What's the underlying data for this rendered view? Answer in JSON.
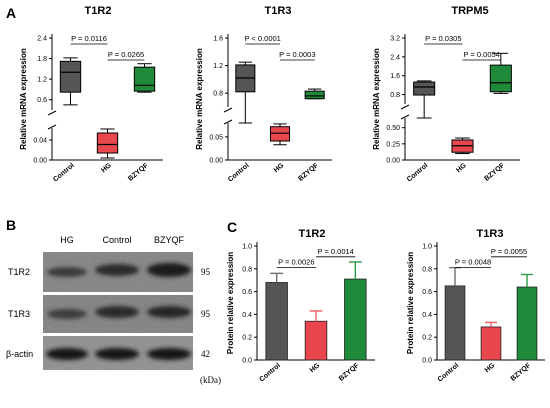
{
  "panels": {
    "A": "A",
    "B": "B",
    "C": "C"
  },
  "colors": {
    "control": "#555555",
    "hg": "#e8474d",
    "bzyqf": "#1f8a3a",
    "blot_bg": "#7d7d7d"
  },
  "chart_data": [
    {
      "id": "t1r2_mrna",
      "type": "box",
      "title": "T1R2",
      "ylabel": "Relative mRNA expression",
      "categories": [
        "Control",
        "HG",
        "BZYQF"
      ],
      "axis_break": true,
      "upper_ticks": [
        "2.4",
        "1.8",
        "1.2",
        "0.6"
      ],
      "lower_ticks": [
        "0.04",
        "0.00"
      ],
      "boxes": [
        {
          "group": "Control",
          "min": 0.45,
          "q1": 0.82,
          "median": 1.4,
          "q3": 1.72,
          "max": 1.82
        },
        {
          "group": "HG",
          "min": 0.004,
          "q1": 0.014,
          "median": 0.031,
          "q3": 0.054,
          "max": 0.062
        },
        {
          "group": "BZYQF",
          "min": 0.82,
          "q1": 0.85,
          "median": 1.02,
          "q3": 1.55,
          "max": 1.65
        }
      ],
      "comparisons": [
        {
          "from": "Control",
          "to": "HG",
          "label": "P = 0.0116"
        },
        {
          "from": "HG",
          "to": "BZYQF",
          "label": "P = 0.0265"
        }
      ]
    },
    {
      "id": "t1r3_mrna",
      "type": "box",
      "title": "T1R3",
      "ylabel": "Relative mRNA expression",
      "categories": [
        "Control",
        "HG",
        "BZYQF"
      ],
      "axis_break": true,
      "upper_ticks": [
        "1.6",
        "1.2",
        "0.8"
      ],
      "lower_ticks": [
        "0.05",
        "0.00"
      ],
      "boxes": [
        {
          "group": "Control",
          "min": 0.6,
          "q1": 0.82,
          "median": 1.02,
          "q3": 1.21,
          "max": 1.25
        },
        {
          "group": "HG",
          "min": 0.033,
          "q1": 0.041,
          "median": 0.058,
          "q3": 0.072,
          "max": 0.078
        },
        {
          "group": "BZYQF",
          "min": 0.72,
          "q1": 0.72,
          "median": 0.76,
          "q3": 0.83,
          "max": 0.86
        }
      ],
      "comparisons": [
        {
          "from": "Control",
          "to": "HG",
          "label": "P < 0.0001"
        },
        {
          "from": "HG",
          "to": "BZYQF",
          "label": "P = 0.0003"
        }
      ]
    },
    {
      "id": "trpm5_mrna",
      "type": "box",
      "title": "TRPM5",
      "ylabel": "Relative mRNA expression",
      "categories": [
        "Control",
        "HG",
        "BZYQF"
      ],
      "axis_break": true,
      "upper_ticks": [
        "3.2",
        "2.4",
        "1.6",
        "0.8"
      ],
      "lower_ticks": [
        "0.50",
        "0.25",
        "0.00"
      ],
      "boxes": [
        {
          "group": "Control",
          "min": 0.7,
          "q1": 0.78,
          "median": 1.12,
          "q3": 1.33,
          "max": 1.38
        },
        {
          "group": "HG",
          "min": 0.1,
          "q1": 0.12,
          "median": 0.22,
          "q3": 0.31,
          "max": 0.34
        },
        {
          "group": "BZYQF",
          "min": 0.85,
          "q1": 0.92,
          "median": 1.3,
          "q3": 2.05,
          "max": 2.55
        }
      ],
      "comparisons": [
        {
          "from": "Control",
          "to": "HG",
          "label": "P = 0.0305"
        },
        {
          "from": "HG",
          "to": "BZYQF",
          "label": "P = 0.0054"
        }
      ]
    },
    {
      "id": "t1r2_protein",
      "type": "bar",
      "title": "T1R2",
      "ylabel": "Protein relative expression",
      "categories": [
        "Control",
        "HG",
        "BZYQF"
      ],
      "ylim": [
        0,
        1.0
      ],
      "yticks": [
        "0.0",
        "0.2",
        "0.4",
        "0.6",
        "0.8",
        "1.0"
      ],
      "values": [
        0.68,
        0.34,
        0.71
      ],
      "errors": [
        0.08,
        0.09,
        0.15
      ],
      "comparisons": [
        {
          "from": "Control",
          "to": "HG",
          "label": "P = 0.0026"
        },
        {
          "from": "HG",
          "to": "BZYQF",
          "label": "P = 0.0014"
        }
      ]
    },
    {
      "id": "t1r3_protein",
      "type": "bar",
      "title": "T1R3",
      "ylabel": "Protein relative expression",
      "categories": [
        "Control",
        "HG",
        "BZYQF"
      ],
      "ylim": [
        0,
        1.0
      ],
      "yticks": [
        "0.0",
        "0.2",
        "0.4",
        "0.6",
        "0.8",
        "1.0"
      ],
      "values": [
        0.65,
        0.29,
        0.64
      ],
      "errors": [
        0.16,
        0.04,
        0.11
      ],
      "comparisons": [
        {
          "from": "Control",
          "to": "HG",
          "label": "P = 0.0048"
        },
        {
          "from": "HG",
          "to": "BZYQF",
          "label": "P = 0.0055"
        }
      ]
    }
  ],
  "western_blot": {
    "lane_labels": [
      "HG",
      "Control",
      "BZYQF"
    ],
    "rows": [
      {
        "protein": "T1R2",
        "kda": "95"
      },
      {
        "protein": "T1R3",
        "kda": "95"
      },
      {
        "protein": "β-actin",
        "kda": "42"
      }
    ],
    "unit": "(kDa)"
  }
}
